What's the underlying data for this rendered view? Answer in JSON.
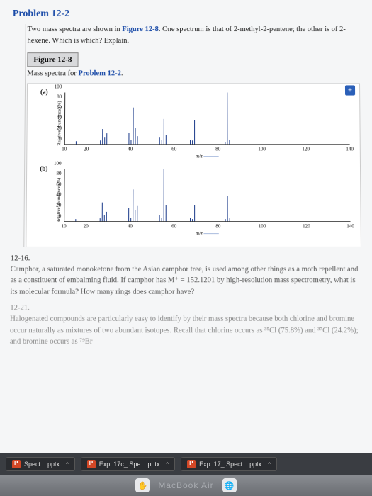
{
  "problem_title": "Problem 12-2",
  "problem_text_1": "Two mass spectra are shown in ",
  "problem_link": "Figure 12-8",
  "problem_text_2": ". One spectrum is that of 2-methyl-2-pentene; the other is of 2-hexene. Which is which? Explain.",
  "figure_label": "Figure 12-8",
  "figure_caption_1": "Mass spectra for ",
  "figure_caption_link": "Problem 12-2",
  "figure_caption_2": ".",
  "y_label": "Relative abundance (%)",
  "x_label": "m/z",
  "x_arrow": "———",
  "chart_a": {
    "label": "(a)",
    "y_ticks": [
      0,
      20,
      40,
      60,
      80,
      100
    ],
    "x_ticks": [
      10,
      20,
      40,
      60,
      80,
      100,
      120,
      140
    ],
    "x_range": [
      10,
      140
    ],
    "peaks": [
      {
        "mz": 15,
        "h": 5
      },
      {
        "mz": 26,
        "h": 6
      },
      {
        "mz": 27,
        "h": 28
      },
      {
        "mz": 28,
        "h": 12
      },
      {
        "mz": 29,
        "h": 20
      },
      {
        "mz": 39,
        "h": 22
      },
      {
        "mz": 40,
        "h": 8
      },
      {
        "mz": 41,
        "h": 70
      },
      {
        "mz": 42,
        "h": 30
      },
      {
        "mz": 43,
        "h": 15
      },
      {
        "mz": 53,
        "h": 12
      },
      {
        "mz": 54,
        "h": 8
      },
      {
        "mz": 55,
        "h": 48
      },
      {
        "mz": 56,
        "h": 18
      },
      {
        "mz": 67,
        "h": 8
      },
      {
        "mz": 68,
        "h": 6
      },
      {
        "mz": 69,
        "h": 45
      },
      {
        "mz": 83,
        "h": 4
      },
      {
        "mz": 84,
        "h": 100
      },
      {
        "mz": 85,
        "h": 8
      }
    ]
  },
  "chart_b": {
    "label": "(b)",
    "y_ticks": [
      0,
      20,
      40,
      60,
      80,
      100
    ],
    "x_ticks": [
      10,
      20,
      40,
      60,
      80,
      100,
      120,
      140
    ],
    "x_range": [
      10,
      140
    ],
    "peaks": [
      {
        "mz": 15,
        "h": 4
      },
      {
        "mz": 26,
        "h": 5
      },
      {
        "mz": 27,
        "h": 35
      },
      {
        "mz": 28,
        "h": 10
      },
      {
        "mz": 29,
        "h": 18
      },
      {
        "mz": 39,
        "h": 25
      },
      {
        "mz": 40,
        "h": 6
      },
      {
        "mz": 41,
        "h": 60
      },
      {
        "mz": 42,
        "h": 20
      },
      {
        "mz": 43,
        "h": 28
      },
      {
        "mz": 53,
        "h": 10
      },
      {
        "mz": 54,
        "h": 6
      },
      {
        "mz": 55,
        "h": 100
      },
      {
        "mz": 56,
        "h": 30
      },
      {
        "mz": 67,
        "h": 6
      },
      {
        "mz": 68,
        "h": 4
      },
      {
        "mz": 69,
        "h": 30
      },
      {
        "mz": 83,
        "h": 3
      },
      {
        "mz": 84,
        "h": 48
      },
      {
        "mz": 85,
        "h": 5
      }
    ]
  },
  "sec1_num": "12-16.",
  "sec1_text": "Camphor, a saturated monoketone from the Asian camphor tree, is used among other things as a moth repellent and as a constituent of embalming fluid. If camphor has M⁺ = 152.1201 by high-resolution mass spectrometry, what is its molecular formula? How many rings does camphor have?",
  "sec2_num": "12-21.",
  "sec2_text": "Halogenated compounds are particularly easy to identify by their mass spectra because both chlorine and bromine occur naturally as mixtures of two abundant isotopes. Recall that chlorine occurs as ³⁵Cl (75.8%) and ³⁷Cl (24.2%); and bromine occurs as ⁷⁹Br",
  "downloads": [
    {
      "name": "Spect....pptx"
    },
    {
      "name": "Exp. 17c_ Spe....pptx"
    },
    {
      "name": "Exp. 17_ Spect....pptx"
    }
  ],
  "mac_text": "MacBook Air"
}
